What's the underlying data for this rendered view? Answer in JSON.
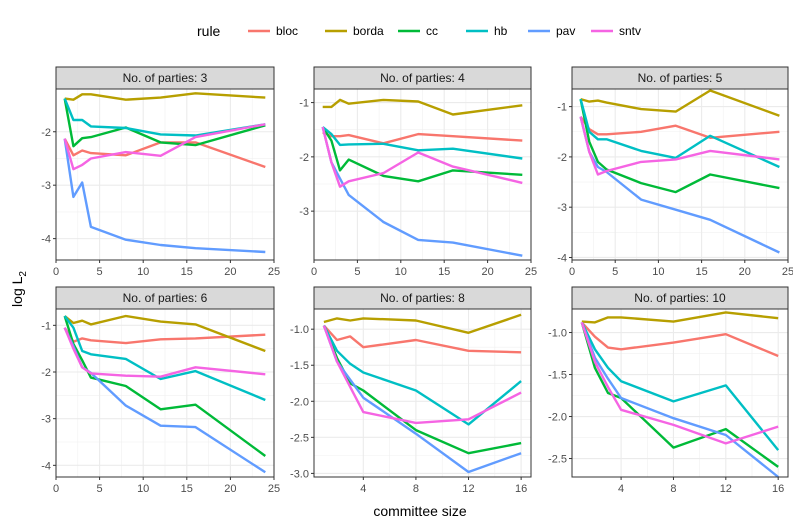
{
  "chart_data": {
    "type": "line",
    "xlabel": "committee size",
    "ylabel_main": "log L",
    "ylabel_sub": "2",
    "legend_title": "rule",
    "legend_position": "top",
    "grid": true,
    "rules": [
      {
        "name": "bloc",
        "color": "#F8766D"
      },
      {
        "name": "borda",
        "color": "#B79F00"
      },
      {
        "name": "cc",
        "color": "#00BA38"
      },
      {
        "name": "hb",
        "color": "#00BFC4"
      },
      {
        "name": "pav",
        "color": "#619CFF"
      },
      {
        "name": "sntv",
        "color": "#F564E3"
      }
    ],
    "panels": [
      {
        "strip": "No. of parties: 3",
        "xlim": [
          0,
          25
        ],
        "ylim": [
          -4.4,
          -1.2
        ],
        "xticks": [
          0,
          5,
          10,
          15,
          20,
          25
        ],
        "xtick_labels": [
          "0",
          "5",
          "10",
          "15",
          "20",
          "25"
        ],
        "yticks": [
          -4,
          -3,
          -2
        ],
        "ytick_labels": [
          "-4",
          "-3",
          "-2"
        ],
        "x": [
          1,
          2,
          3,
          4,
          8,
          12,
          16,
          24
        ],
        "series": [
          {
            "name": "bloc",
            "values": [
              -2.13,
              -2.44,
              -2.35,
              -2.4,
              -2.44,
              -2.2,
              -2.2,
              -2.66
            ]
          },
          {
            "name": "borda",
            "values": [
              -1.38,
              -1.4,
              -1.3,
              -1.3,
              -1.4,
              -1.36,
              -1.28,
              -1.36
            ]
          },
          {
            "name": "cc",
            "values": [
              -1.38,
              -2.27,
              -2.12,
              -2.1,
              -1.92,
              -2.2,
              -2.25,
              -1.88
            ]
          },
          {
            "name": "hb",
            "values": [
              -1.38,
              -1.78,
              -1.78,
              -1.9,
              -1.93,
              -2.05,
              -2.07,
              -1.86
            ]
          },
          {
            "name": "pav",
            "values": [
              -2.13,
              -3.22,
              -2.95,
              -3.78,
              -4.02,
              -4.12,
              -4.18,
              -4.25
            ]
          },
          {
            "name": "sntv",
            "values": [
              -2.13,
              -2.7,
              -2.62,
              -2.5,
              -2.38,
              -2.45,
              -2.1,
              -1.86
            ]
          }
        ]
      },
      {
        "strip": "No. of parties: 4",
        "xlim": [
          0,
          25
        ],
        "ylim": [
          -3.9,
          -0.75
        ],
        "xticks": [
          0,
          5,
          10,
          15,
          20,
          25
        ],
        "xtick_labels": [
          "0",
          "5",
          "10",
          "15",
          "20",
          "25"
        ],
        "yticks": [
          -3,
          -2,
          -1
        ],
        "ytick_labels": [
          "-3",
          "-2",
          "-1"
        ],
        "x": [
          1,
          2,
          3,
          4,
          8,
          12,
          16,
          24
        ],
        "series": [
          {
            "name": "bloc",
            "values": [
              -1.55,
              -1.62,
              -1.62,
              -1.6,
              -1.75,
              -1.58,
              -1.62,
              -1.7
            ]
          },
          {
            "name": "borda",
            "values": [
              -1.08,
              -1.08,
              -0.95,
              -1.02,
              -0.95,
              -0.98,
              -1.22,
              -1.05
            ]
          },
          {
            "name": "cc",
            "values": [
              -1.45,
              -1.7,
              -2.25,
              -2.05,
              -2.35,
              -2.45,
              -2.25,
              -2.33
            ]
          },
          {
            "name": "hb",
            "values": [
              -1.45,
              -1.58,
              -1.78,
              -1.77,
              -1.76,
              -1.88,
              -1.85,
              -2.03
            ]
          },
          {
            "name": "pav",
            "values": [
              -1.45,
              -2.1,
              -2.4,
              -2.7,
              -3.2,
              -3.53,
              -3.58,
              -3.82
            ]
          },
          {
            "name": "sntv",
            "values": [
              -1.45,
              -2.1,
              -2.55,
              -2.45,
              -2.3,
              -1.92,
              -2.18,
              -2.48
            ]
          }
        ]
      },
      {
        "strip": "No. of parties: 5",
        "xlim": [
          0,
          25
        ],
        "ylim": [
          -4.05,
          -0.65
        ],
        "xticks": [
          0,
          5,
          10,
          15,
          20,
          25
        ],
        "xtick_labels": [
          "0",
          "5",
          "10",
          "15",
          "20",
          "25"
        ],
        "yticks": [
          -4,
          -3,
          -2,
          -1
        ],
        "ytick_labels": [
          "-4",
          "-3",
          "-2",
          "-1"
        ],
        "x": [
          1,
          2,
          3,
          4,
          8,
          12,
          16,
          24
        ],
        "series": [
          {
            "name": "bloc",
            "values": [
              -1.2,
              -1.45,
              -1.55,
              -1.55,
              -1.5,
              -1.38,
              -1.62,
              -1.5
            ]
          },
          {
            "name": "borda",
            "values": [
              -0.85,
              -0.9,
              -0.88,
              -0.92,
              -1.05,
              -1.1,
              -0.68,
              -1.18
            ]
          },
          {
            "name": "cc",
            "values": [
              -0.85,
              -1.7,
              -2.1,
              -2.25,
              -2.52,
              -2.7,
              -2.35,
              -2.62
            ]
          },
          {
            "name": "hb",
            "values": [
              -0.85,
              -1.5,
              -1.65,
              -1.65,
              -1.88,
              -2.02,
              -1.58,
              -2.2
            ]
          },
          {
            "name": "pav",
            "values": [
              -1.2,
              -1.9,
              -2.2,
              -2.3,
              -2.85,
              -3.05,
              -3.25,
              -3.9
            ]
          },
          {
            "name": "sntv",
            "values": [
              -1.2,
              -1.9,
              -2.35,
              -2.28,
              -2.1,
              -2.05,
              -1.88,
              -2.05
            ]
          }
        ]
      },
      {
        "strip": "No. of parties: 6",
        "xlim": [
          0,
          25
        ],
        "ylim": [
          -4.25,
          -0.65
        ],
        "xticks": [
          0,
          5,
          10,
          15,
          20,
          25
        ],
        "xtick_labels": [
          "0",
          "5",
          "10",
          "15",
          "20",
          "25"
        ],
        "yticks": [
          -4,
          -3,
          -2,
          -1
        ],
        "ytick_labels": [
          "-4",
          "-3",
          "-2",
          "-1"
        ],
        "x": [
          1,
          2,
          3,
          4,
          8,
          12,
          16,
          24
        ],
        "series": [
          {
            "name": "bloc",
            "values": [
              -1.05,
              -1.35,
              -1.28,
              -1.32,
              -1.38,
              -1.3,
              -1.28,
              -1.2
            ]
          },
          {
            "name": "borda",
            "values": [
              -0.8,
              -0.95,
              -0.9,
              -0.98,
              -0.8,
              -0.92,
              -0.98,
              -1.55
            ]
          },
          {
            "name": "cc",
            "values": [
              -0.8,
              -1.4,
              -1.75,
              -2.12,
              -2.3,
              -2.8,
              -2.7,
              -3.8
            ]
          },
          {
            "name": "hb",
            "values": [
              -0.8,
              -1.05,
              -1.55,
              -1.62,
              -1.72,
              -2.15,
              -1.98,
              -2.6
            ]
          },
          {
            "name": "pav",
            "values": [
              -1.05,
              -1.45,
              -1.9,
              -2.02,
              -2.72,
              -3.15,
              -3.18,
              -4.15
            ]
          },
          {
            "name": "sntv",
            "values": [
              -1.05,
              -1.5,
              -1.9,
              -2.03,
              -2.08,
              -2.1,
              -1.9,
              -2.05
            ]
          }
        ]
      },
      {
        "strip": "No. of parties: 8",
        "xlim": [
          0.25,
          16.75
        ],
        "ylim": [
          -3.05,
          -0.72
        ],
        "xticks": [
          4,
          8,
          12,
          16
        ],
        "xtick_labels": [
          "4",
          "8",
          "12",
          "16"
        ],
        "yticks": [
          -3.0,
          -2.5,
          -2.0,
          -1.5,
          -1.0
        ],
        "ytick_labels": [
          "-3.0",
          "-2.5",
          "-2.0",
          "-1.5",
          "-1.0"
        ],
        "x": [
          1,
          2,
          3,
          4,
          8,
          12,
          16
        ],
        "series": [
          {
            "name": "bloc",
            "values": [
              -0.95,
              -1.15,
              -1.1,
              -1.25,
              -1.15,
              -1.3,
              -1.32
            ]
          },
          {
            "name": "borda",
            "values": [
              -0.9,
              -0.85,
              -0.88,
              -0.85,
              -0.88,
              -1.05,
              -0.8
            ]
          },
          {
            "name": "cc",
            "values": [
              -0.95,
              -1.4,
              -1.75,
              -1.85,
              -2.4,
              -2.72,
              -2.58
            ]
          },
          {
            "name": "hb",
            "values": [
              -0.95,
              -1.3,
              -1.48,
              -1.6,
              -1.85,
              -2.32,
              -1.72
            ]
          },
          {
            "name": "pav",
            "values": [
              -0.95,
              -1.45,
              -1.7,
              -1.95,
              -2.45,
              -2.98,
              -2.72
            ]
          },
          {
            "name": "sntv",
            "values": [
              -0.95,
              -1.45,
              -1.8,
              -2.15,
              -2.3,
              -2.25,
              -1.88
            ]
          }
        ]
      },
      {
        "strip": "No. of parties: 10",
        "xlim": [
          0.25,
          16.75
        ],
        "ylim": [
          -2.72,
          -0.72
        ],
        "xticks": [
          4,
          8,
          12,
          16
        ],
        "xtick_labels": [
          "4",
          "8",
          "12",
          "16"
        ],
        "yticks": [
          -2.5,
          -2.0,
          -1.5,
          -1.0
        ],
        "ytick_labels": [
          "-2.5",
          "-2.0",
          "-1.5",
          "-1.0"
        ],
        "x": [
          1,
          2,
          3,
          4,
          8,
          12,
          16
        ],
        "series": [
          {
            "name": "bloc",
            "values": [
              -0.88,
              -1.05,
              -1.18,
              -1.2,
              -1.12,
              -1.02,
              -1.28
            ]
          },
          {
            "name": "borda",
            "values": [
              -0.87,
              -0.88,
              -0.82,
              -0.82,
              -0.87,
              -0.76,
              -0.83
            ]
          },
          {
            "name": "cc",
            "values": [
              -0.88,
              -1.42,
              -1.72,
              -1.78,
              -2.37,
              -2.15,
              -2.6
            ]
          },
          {
            "name": "hb",
            "values": [
              -0.88,
              -1.2,
              -1.42,
              -1.58,
              -1.82,
              -1.63,
              -2.4
            ]
          },
          {
            "name": "pav",
            "values": [
              -0.88,
              -1.3,
              -1.55,
              -1.78,
              -2.02,
              -2.22,
              -2.72
            ]
          },
          {
            "name": "sntv",
            "values": [
              -0.88,
              -1.35,
              -1.65,
              -1.92,
              -2.1,
              -2.32,
              -2.12
            ]
          }
        ]
      }
    ]
  }
}
